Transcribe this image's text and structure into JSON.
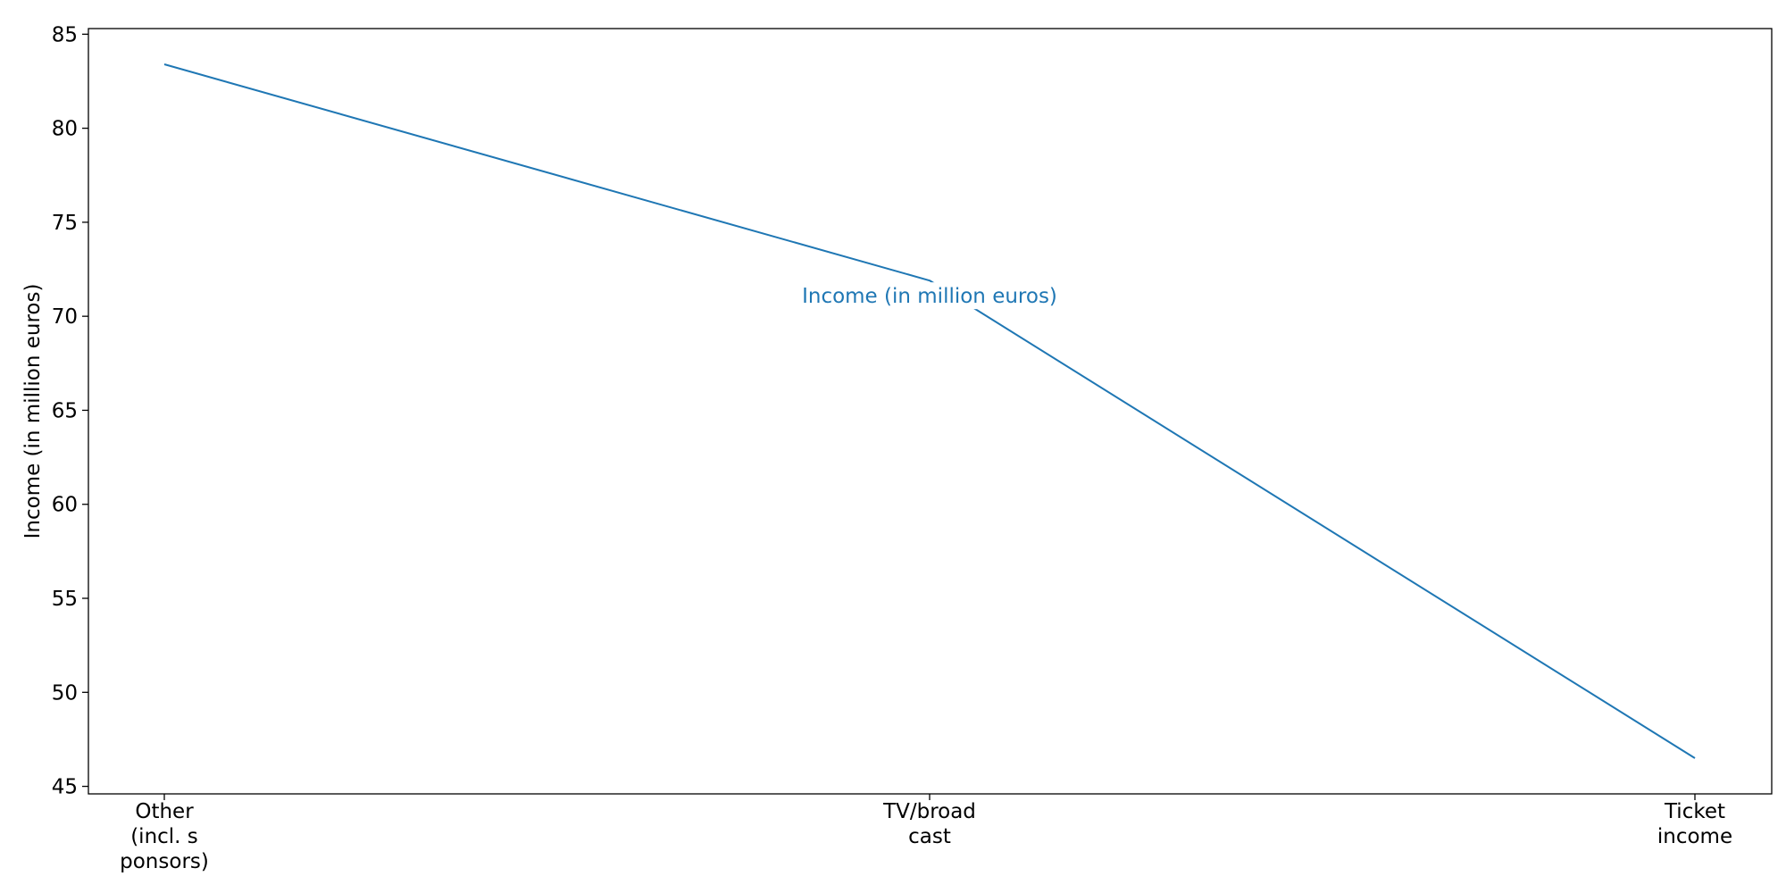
{
  "chart_data": {
    "type": "line",
    "categories": [
      "Other\n(incl. s\nponsors)",
      "TV/broad\ncast",
      "Ticket\nincome"
    ],
    "series": [
      {
        "name": "Income (in million euros)",
        "values": [
          83.4,
          71.9,
          46.5
        ],
        "color": "#1f77b4"
      }
    ],
    "title": "",
    "xlabel": "",
    "ylabel": "Income (in million euros)",
    "ylim": [
      44.6,
      85.3
    ],
    "yticks": [
      45,
      50,
      55,
      60,
      65,
      70,
      75,
      80,
      85
    ],
    "grid": false,
    "series_label_placement": "on the line, at the middle point"
  }
}
